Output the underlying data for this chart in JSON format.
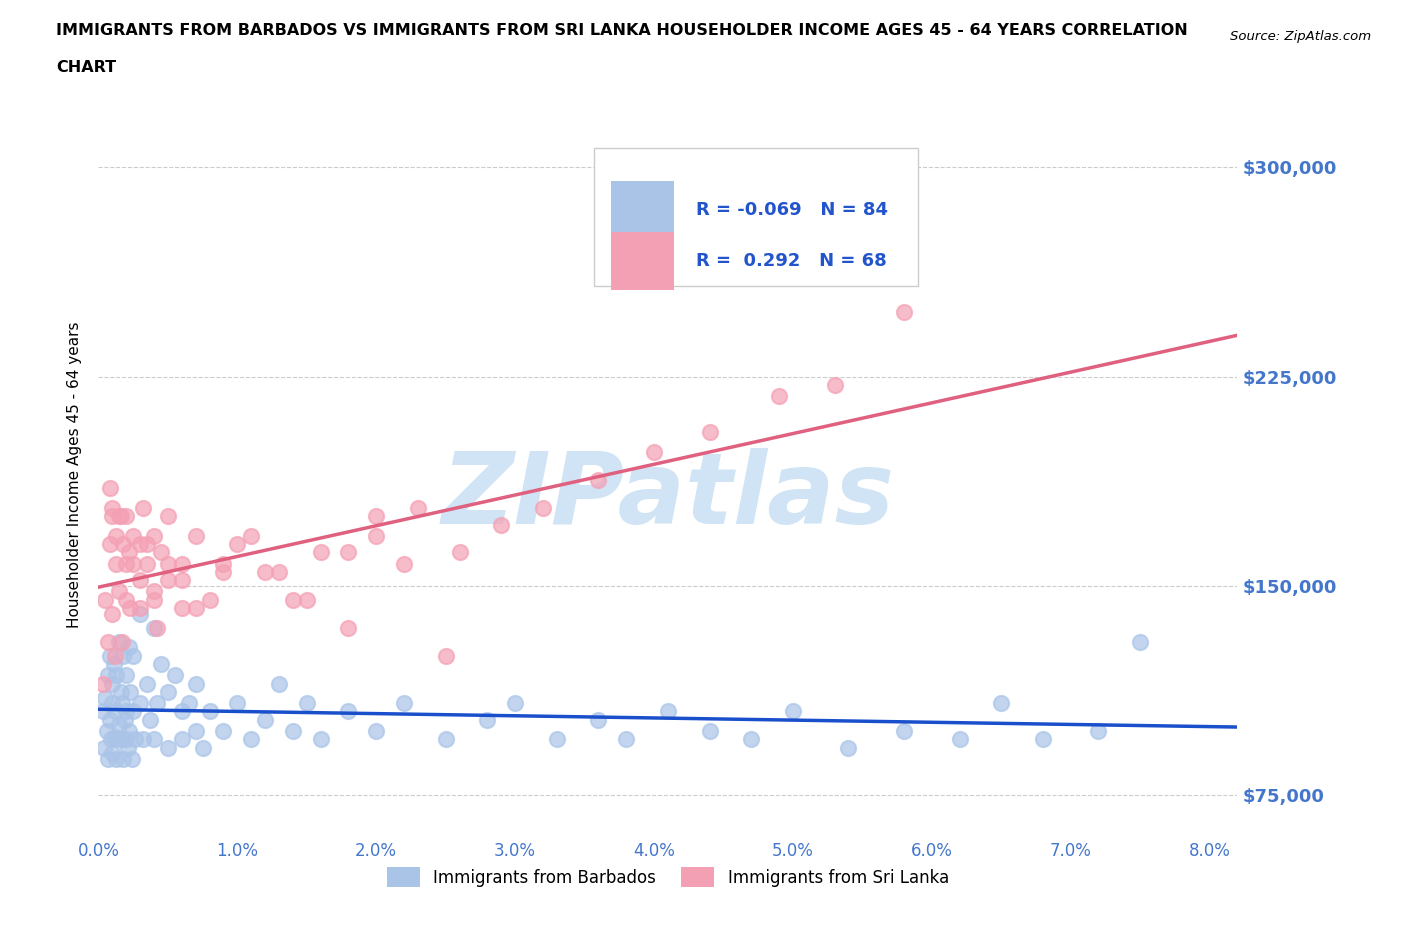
{
  "title_line1": "IMMIGRANTS FROM BARBADOS VS IMMIGRANTS FROM SRI LANKA HOUSEHOLDER INCOME AGES 45 - 64 YEARS CORRELATION",
  "title_line2": "CHART",
  "source": "Source: ZipAtlas.com",
  "ylabel": "Householder Income Ages 45 - 64 years",
  "xlim": [
    0.0,
    0.082
  ],
  "ylim": [
    60000,
    320000
  ],
  "yticks": [
    75000,
    150000,
    225000,
    300000
  ],
  "ytick_labels": [
    "$75,000",
    "$150,000",
    "$225,000",
    "$300,000"
  ],
  "xticks": [
    0.0,
    0.01,
    0.02,
    0.03,
    0.04,
    0.05,
    0.06,
    0.07,
    0.08
  ],
  "xtick_labels": [
    "0.0%",
    "1.0%",
    "2.0%",
    "3.0%",
    "4.0%",
    "5.0%",
    "6.0%",
    "7.0%",
    "8.0%"
  ],
  "barbados_color": "#aac4e8",
  "srilanka_color": "#f4a0b4",
  "barbados_label": "Immigrants from Barbados",
  "srilanka_label": "Immigrants from Sri Lanka",
  "R_barbados": -0.069,
  "N_barbados": 84,
  "R_srilanka": 0.292,
  "N_srilanka": 68,
  "trend_barbados_color": "#1a4fcc",
  "trend_srilanka_color": "#e06080",
  "watermark": "ZIPatlas",
  "watermark_color": "#d0e4f5",
  "axis_color": "#4477cc",
  "legend_R_color": "#2255cc",
  "background_color": "#ffffff",
  "barbados_x": [
    0.0003,
    0.0004,
    0.0005,
    0.0006,
    0.0007,
    0.0007,
    0.0008,
    0.0008,
    0.0009,
    0.001,
    0.001,
    0.001,
    0.0011,
    0.0012,
    0.0012,
    0.0013,
    0.0013,
    0.0014,
    0.0015,
    0.0015,
    0.0016,
    0.0017,
    0.0017,
    0.0018,
    0.0018,
    0.0019,
    0.002,
    0.002,
    0.002,
    0.0021,
    0.0022,
    0.0022,
    0.0023,
    0.0024,
    0.0025,
    0.0025,
    0.0026,
    0.003,
    0.003,
    0.0032,
    0.0035,
    0.0037,
    0.004,
    0.004,
    0.0042,
    0.0045,
    0.005,
    0.005,
    0.0055,
    0.006,
    0.006,
    0.0065,
    0.007,
    0.007,
    0.0075,
    0.008,
    0.009,
    0.01,
    0.011,
    0.012,
    0.013,
    0.014,
    0.015,
    0.016,
    0.018,
    0.02,
    0.022,
    0.025,
    0.028,
    0.03,
    0.033,
    0.036,
    0.038,
    0.041,
    0.044,
    0.047,
    0.05,
    0.054,
    0.058,
    0.062,
    0.065,
    0.068,
    0.072,
    0.075
  ],
  "barbados_y": [
    105000,
    92000,
    110000,
    98000,
    118000,
    88000,
    102000,
    125000,
    95000,
    115000,
    90000,
    108000,
    122000,
    96000,
    105000,
    88000,
    118000,
    95000,
    130000,
    100000,
    112000,
    95000,
    108000,
    88000,
    125000,
    102000,
    118000,
    95000,
    105000,
    92000,
    128000,
    98000,
    112000,
    88000,
    105000,
    125000,
    95000,
    140000,
    108000,
    95000,
    115000,
    102000,
    135000,
    95000,
    108000,
    122000,
    112000,
    92000,
    118000,
    105000,
    95000,
    108000,
    98000,
    115000,
    92000,
    105000,
    98000,
    108000,
    95000,
    102000,
    115000,
    98000,
    108000,
    95000,
    105000,
    98000,
    108000,
    95000,
    102000,
    108000,
    95000,
    102000,
    95000,
    105000,
    98000,
    95000,
    105000,
    92000,
    98000,
    95000,
    108000,
    95000,
    98000,
    130000
  ],
  "srilanka_x": [
    0.0003,
    0.0005,
    0.0007,
    0.0008,
    0.001,
    0.001,
    0.0012,
    0.0013,
    0.0015,
    0.0015,
    0.0017,
    0.0018,
    0.002,
    0.002,
    0.0022,
    0.0023,
    0.0025,
    0.003,
    0.003,
    0.0032,
    0.0035,
    0.004,
    0.004,
    0.0042,
    0.0045,
    0.005,
    0.005,
    0.006,
    0.006,
    0.007,
    0.008,
    0.009,
    0.01,
    0.012,
    0.014,
    0.016,
    0.018,
    0.02,
    0.022,
    0.025,
    0.0008,
    0.001,
    0.0013,
    0.0016,
    0.002,
    0.0025,
    0.003,
    0.0035,
    0.004,
    0.005,
    0.006,
    0.007,
    0.009,
    0.011,
    0.013,
    0.015,
    0.018,
    0.02,
    0.023,
    0.026,
    0.029,
    0.032,
    0.036,
    0.04,
    0.044,
    0.049,
    0.053,
    0.058
  ],
  "srilanka_y": [
    115000,
    145000,
    130000,
    165000,
    140000,
    175000,
    125000,
    158000,
    148000,
    175000,
    130000,
    165000,
    145000,
    175000,
    162000,
    142000,
    158000,
    165000,
    142000,
    178000,
    158000,
    145000,
    168000,
    135000,
    162000,
    152000,
    175000,
    158000,
    142000,
    168000,
    145000,
    158000,
    165000,
    155000,
    145000,
    162000,
    135000,
    175000,
    158000,
    125000,
    185000,
    178000,
    168000,
    175000,
    158000,
    168000,
    152000,
    165000,
    148000,
    158000,
    152000,
    142000,
    155000,
    168000,
    155000,
    145000,
    162000,
    168000,
    178000,
    162000,
    172000,
    178000,
    188000,
    198000,
    205000,
    218000,
    222000,
    248000
  ]
}
